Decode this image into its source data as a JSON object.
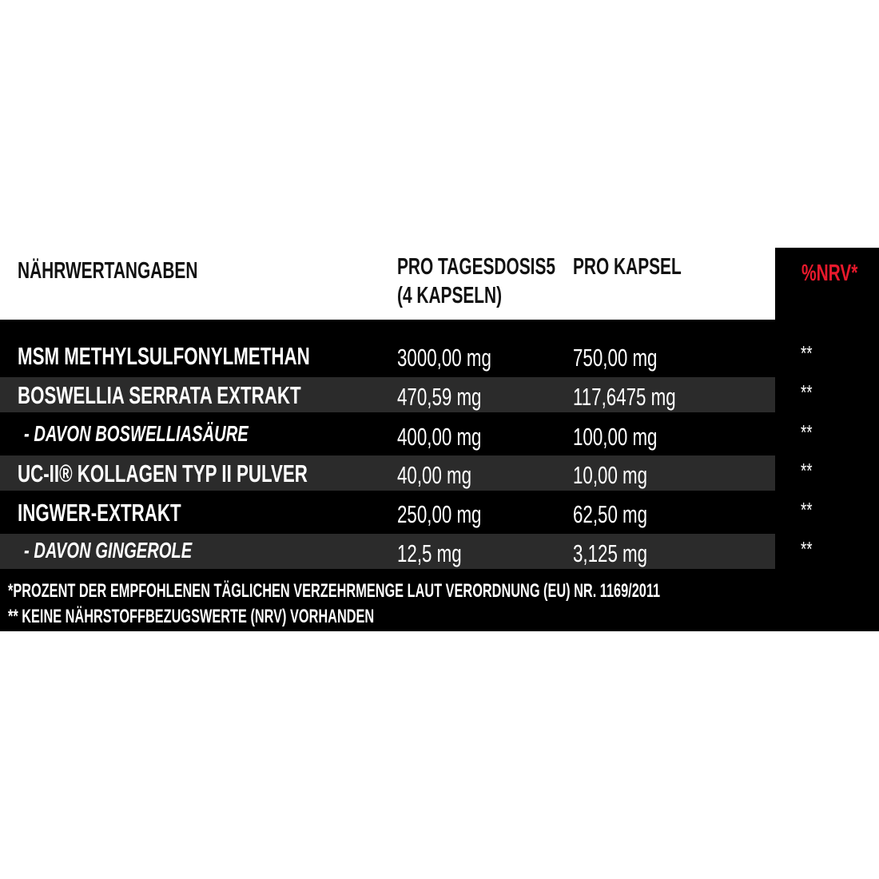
{
  "header": {
    "title": "NÄHRWERTANGABEN",
    "col1": "PRO TAGESDOSIS5",
    "col1_sub": "(4 KAPSELN)",
    "col2": "PRO KAPSEL",
    "col3": "%NRV*"
  },
  "table": {
    "rows": [
      [
        "MSM METHYLSULFONYLMETHAN",
        "3000,00 mg",
        "750,00 mg",
        "**"
      ],
      [
        "BOSWELLIA SERRATA EXTRAKT",
        "470,59 mg",
        "117,6475 mg",
        "**"
      ],
      [
        "- DAVON BOSWELLIASÄURE",
        "400,00 mg",
        "100,00 mg",
        "**"
      ],
      [
        "UC-II® KOLLAGEN TYP II PULVER",
        "40,00 mg",
        "10,00 mg",
        "**"
      ],
      [
        "INGWER-EXTRAKT",
        "250,00 mg",
        "62,50 mg",
        "**"
      ],
      [
        "- DAVON GINGEROLE",
        "12,5 mg",
        "3,125 mg",
        "**"
      ]
    ]
  },
  "footnotes": [
    "*PROZENT DER EMPFOHLENEN TÄGLICHEN VERZEHRMENGE LAUT VERORDNUNG (EU) NR. 1169/2011",
    "** KEINE NÄHRSTOFFBEZUGSWERTE (NRV) VORHANDEN"
  ]
}
